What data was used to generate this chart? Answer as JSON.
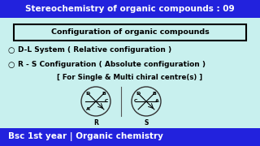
{
  "title": "Stereochemistry of organic compounds : 09",
  "title_bg": "#2222dd",
  "title_color": "#ffffff",
  "main_bg": "#c8f0ee",
  "box_text": "Configuration of organic compounds",
  "box_bg": "#c8f0ee",
  "box_border": "#000000",
  "bullet1": "D-L System ( Relative configuration )",
  "bullet2": "R - S Configuration ( Absolute configuration )",
  "bullet3": "[ For Single & Multi chiral centre(s) ]",
  "footer": "Bsc 1st year | Organic chemistry",
  "footer_bg": "#2222dd",
  "footer_color": "#ffffff",
  "text_color": "#000000"
}
